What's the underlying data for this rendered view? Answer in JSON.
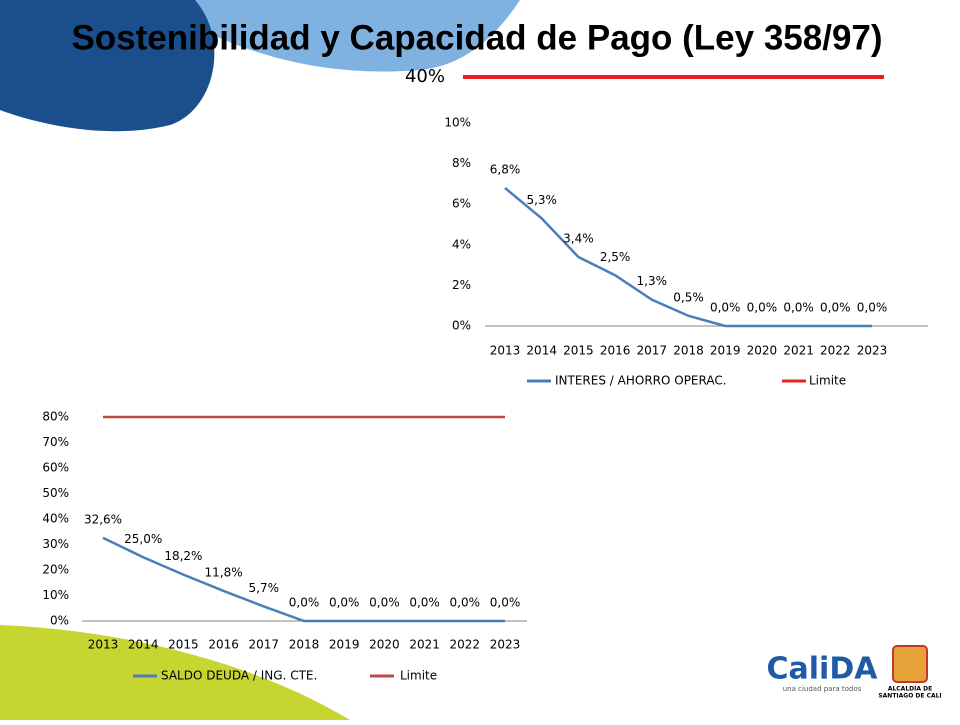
{
  "title": "Sostenibilidad y Capacidad de Pago (Ley 358/97)",
  "logos": {
    "name": "CaliDA",
    "tagline": "una ciudad para todos",
    "mayor": "ALCALDÍA DE",
    "city": "SANTIAGO DE CALI"
  },
  "chart_data": [
    {
      "type": "line",
      "annotation": "40%",
      "categories": [
        "2013",
        "2014",
        "2015",
        "2016",
        "2017",
        "2018",
        "2019",
        "2020",
        "2021",
        "2022",
        "2023"
      ],
      "series": [
        {
          "name": "INTERES / AHORRO OPERAC.",
          "color": "#4a7ebb",
          "values": [
            6.8,
            5.3,
            3.4,
            2.5,
            1.3,
            0.5,
            0,
            0,
            0,
            0,
            0
          ],
          "value_labels": [
            "6,8%",
            "5,3%",
            "3,4%",
            "2,5%",
            "1,3%",
            "0,5%",
            "0,0%",
            "0,0%",
            "0,0%",
            "0,0%",
            "0,0%"
          ]
        },
        {
          "name": "Limite",
          "color": "#e8211e",
          "values": [
            40,
            40,
            40,
            40,
            40,
            40,
            40,
            40,
            40,
            40,
            40
          ]
        }
      ],
      "ylim": [
        0,
        10
      ],
      "yticks": [
        {
          "value": 0,
          "label": "0%"
        },
        {
          "value": 2,
          "label": "2%"
        },
        {
          "value": 4,
          "label": "4%"
        },
        {
          "value": 6,
          "label": "6%"
        },
        {
          "value": 8,
          "label": "8%"
        },
        {
          "value": 10,
          "label": "10%"
        }
      ],
      "legend": "bottom"
    },
    {
      "type": "line",
      "categories": [
        "2013",
        "2014",
        "2015",
        "2016",
        "2017",
        "2018",
        "2019",
        "2020",
        "2021",
        "2022",
        "2023"
      ],
      "series": [
        {
          "name": "SALDO DEUDA / ING.  CTE.",
          "color": "#4a7ebb",
          "values": [
            32.6,
            25.0,
            18.2,
            11.8,
            5.7,
            0,
            0,
            0,
            0,
            0,
            0
          ],
          "value_labels": [
            "32,6%",
            "25,0%",
            "18,2%",
            "11,8%",
            "5,7%",
            "0,0%",
            "0,0%",
            "0,0%",
            "0,0%",
            "0,0%",
            "0,0%"
          ]
        },
        {
          "name": "Limite",
          "color": "#be4b48",
          "values": [
            80,
            80,
            80,
            80,
            80,
            80,
            80,
            80,
            80,
            80,
            80
          ]
        }
      ],
      "ylim": [
        0,
        80
      ],
      "yticks": [
        {
          "value": 0,
          "label": "0%"
        },
        {
          "value": 10,
          "label": "10%"
        },
        {
          "value": 20,
          "label": "20%"
        },
        {
          "value": 30,
          "label": "30%"
        },
        {
          "value": 40,
          "label": "40%"
        },
        {
          "value": 50,
          "label": "50%"
        },
        {
          "value": 60,
          "label": "60%"
        },
        {
          "value": 70,
          "label": "70%"
        },
        {
          "value": 80,
          "label": "80%"
        }
      ],
      "legend": "bottom"
    }
  ]
}
